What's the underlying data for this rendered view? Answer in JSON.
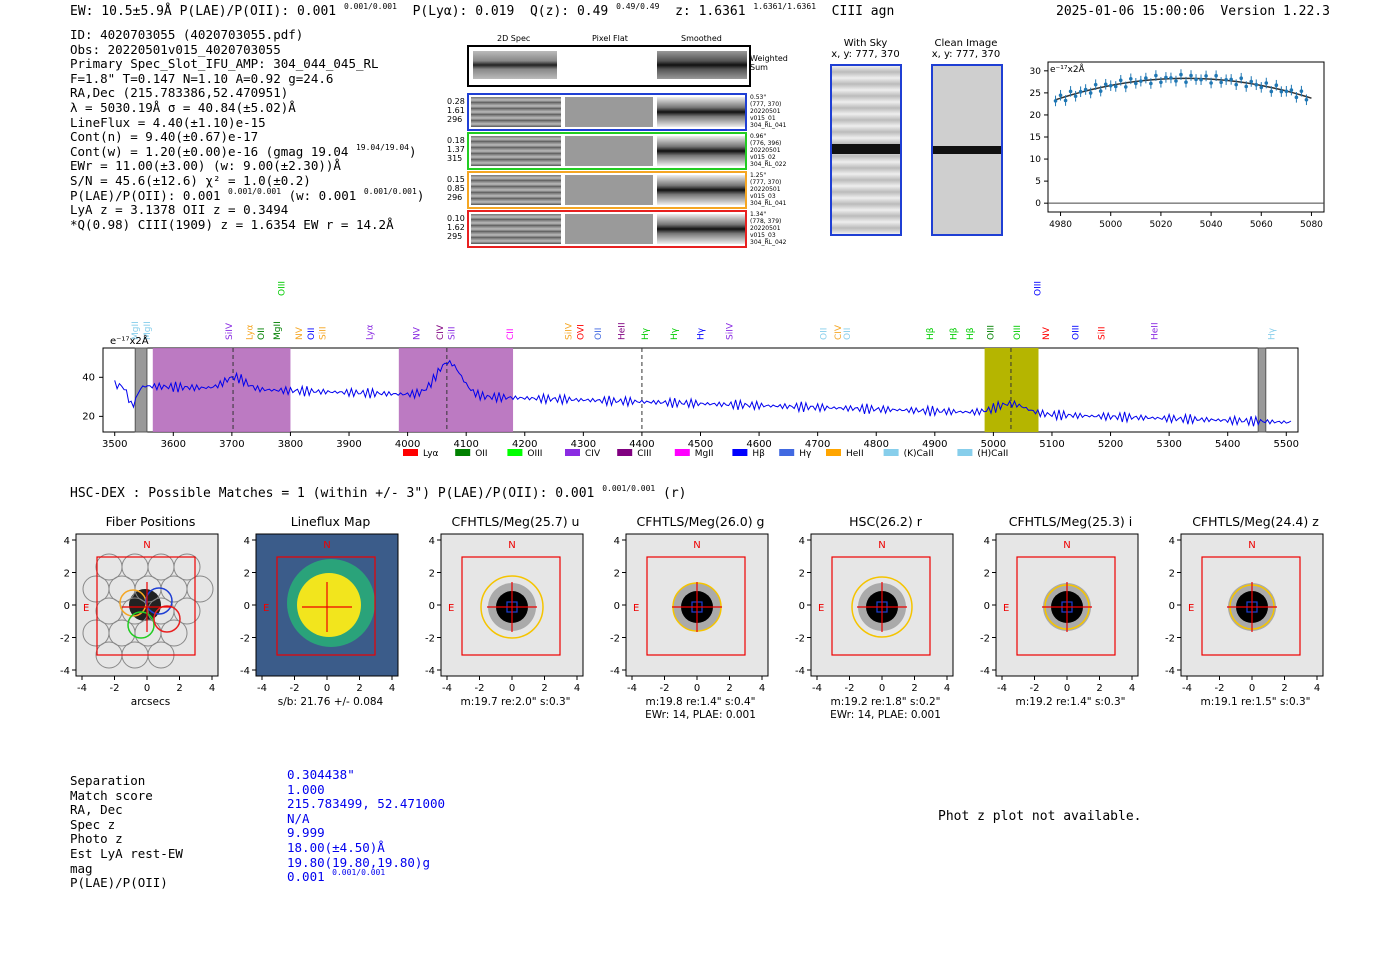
{
  "header": {
    "summary": "EW: 10.5±5.9Å  P(LAE)/P(OII): 0.001",
    "summary_frac": "0.001/0.001",
    "plya": "P(Lyα): 0.019",
    "qz": "Q(z): 0.49",
    "qz_frac": "0.49/0.49",
    "z": "z: 1.6361",
    "z_frac": "1.6361/1.6361",
    "class": "CIII  agn",
    "timestamp": "2025-01-06 15:00:06",
    "version": "Version 1.22.3"
  },
  "info": {
    "id": "ID: 4020703055 (4020703055.pdf)",
    "obs": "Obs: 20220501v015_4020703055",
    "primary": "Primary Spec_Slot_IFU_AMP: 304_044_045_RL",
    "fwhm": "F=1.8\"  T=0.147  N=1.10  A=0.92  g=24.6",
    "radec": "RA,Dec (215.783386,52.470951)",
    "lambda": "λ = 5030.19Å  σ = 40.84(±5.02)Å",
    "lineflux": "LineFlux = 4.40(±1.10)e-15",
    "contn": "Cont(n) = 9.40(±0.67)e-17",
    "contw": "Cont(w) = 1.20(±0.00)e-16 (gmag 19.04",
    "contw_frac": "19.04/19.04",
    "ewr": "EWr = 11.00(±3.00) (w: 9.00(±2.30))Å",
    "sn": "S/N = 45.6(±12.6)  χ² = 1.0(±0.2)",
    "plae": "P(LAE)/P(OII): 0.001",
    "plae_mid": "(w: 0.001",
    "lya_z": "LyA z = 3.1378  OII z = 0.3494",
    "qline": "*Q(0.98) CIII(1909) z = 1.6354  EW r = 14.2Å"
  },
  "spec2d": {
    "col_headers": [
      "2D Spec",
      "Pixel Flat",
      "Smoothed"
    ],
    "weighted_sum": "Weighted Sum",
    "rows": [
      {
        "stats": [
          "0.28",
          "1.61",
          "296"
        ],
        "notes": [
          "0.53\"",
          "(777, 370)",
          "20220501",
          "v015_01",
          "304_RL_041"
        ],
        "color": "#1f3fd4"
      },
      {
        "stats": [
          "0.18",
          "1.37",
          "315"
        ],
        "notes": [
          "0.96\"",
          "(776, 396)",
          "20220501",
          "v015_02",
          "304_RL_022"
        ],
        "color": "#22cc22"
      },
      {
        "stats": [
          "0.15",
          "0.85",
          "296"
        ],
        "notes": [
          "1.25\"",
          "(777, 370)",
          "20220501",
          "v015_03",
          "304_RL_041"
        ],
        "color": "#f5a623"
      },
      {
        "stats": [
          "0.10",
          "1.62",
          "295"
        ],
        "notes": [
          "1.34\"",
          "(778, 379)",
          "20220501",
          "v015_03",
          "304_RL_042"
        ],
        "color": "#e82020"
      }
    ]
  },
  "sky": {
    "with_sky_title": "With Sky",
    "with_sky_sub": "x, y: 777, 370",
    "clean_title": "Clean Image",
    "clean_sub": "x, y: 777, 370"
  },
  "zoom_plot": {
    "unit": "e⁻¹⁷x2Å",
    "x_ticks": [
      "4980",
      "5000",
      "5020",
      "5040",
      "5060",
      "5080"
    ],
    "y_ticks": [
      "0",
      "5",
      "10",
      "15",
      "20",
      "25",
      "30"
    ]
  },
  "full_spectrum": {
    "unit": "e⁻¹⁷x2Å",
    "x_ticks": [
      "3500",
      "3600",
      "3700",
      "3800",
      "3900",
      "4000",
      "4100",
      "4200",
      "4300",
      "4400",
      "4500",
      "4600",
      "4700",
      "4800",
      "4900",
      "5000",
      "5100",
      "5200",
      "5300",
      "5400",
      "5500"
    ],
    "y_ticks": [
      "20",
      "40"
    ],
    "legend": [
      {
        "label": "Lyα",
        "color": "#ff0000"
      },
      {
        "label": "OII",
        "color": "#008000"
      },
      {
        "label": "OIII",
        "color": "#00ff00"
      },
      {
        "label": "CIV",
        "color": "#8a2be2"
      },
      {
        "label": "CIII",
        "color": "#800080"
      },
      {
        "label": "MgII",
        "color": "#ff00ff"
      },
      {
        "label": "Hβ",
        "color": "#0000ff"
      },
      {
        "label": "Hγ",
        "color": "#4169e1"
      },
      {
        "label": "HeII",
        "color": "#ffa500"
      },
      {
        "label": "(K)CaII",
        "color": "#87ceeb"
      },
      {
        "label": "(H)CaII",
        "color": "#87ceeb"
      }
    ],
    "line_labels": [
      {
        "t": "MgII",
        "c": "#87ceeb"
      },
      {
        "t": "MgII",
        "c": "#87ceeb"
      },
      {
        "t": "SiIV",
        "c": "#8a2be2"
      },
      {
        "t": "Lyα",
        "c": "#f5a623"
      },
      {
        "t": "OII",
        "c": "#008000"
      },
      {
        "t": "MgII",
        "c": "#008000"
      },
      {
        "t": "OIII",
        "c": "#00cc00"
      },
      {
        "t": "NV",
        "c": "#f5a623"
      },
      {
        "t": "OII",
        "c": "#0000ff"
      },
      {
        "t": "SiII",
        "c": "#f5a623"
      },
      {
        "t": "Lyα",
        "c": "#8a2be2"
      },
      {
        "t": "NV",
        "c": "#8a2be2"
      },
      {
        "t": "CIV",
        "c": "#800080"
      },
      {
        "t": "SiII",
        "c": "#8a2be2"
      },
      {
        "t": "CII",
        "c": "#ff00ff"
      },
      {
        "t": "SiIV",
        "c": "#f5a623"
      },
      {
        "t": "OVI",
        "c": "#ff0000"
      },
      {
        "t": "OII",
        "c": "#4169e1"
      },
      {
        "t": "HeII",
        "c": "#800080"
      },
      {
        "t": "Hγ",
        "c": "#00cc00"
      },
      {
        "t": "Hγ",
        "c": "#00cc00"
      },
      {
        "t": "Hγ",
        "c": "#0000ff"
      },
      {
        "t": "SiIV",
        "c": "#8a2be2"
      },
      {
        "t": "OII",
        "c": "#87ceeb"
      },
      {
        "t": "CIV",
        "c": "#f5a623"
      },
      {
        "t": "OII",
        "c": "#87ceeb"
      },
      {
        "t": "Hβ",
        "c": "#00cc00"
      },
      {
        "t": "Hβ",
        "c": "#00cc00"
      },
      {
        "t": "Hβ",
        "c": "#00cc00"
      },
      {
        "t": "OIII",
        "c": "#008000"
      },
      {
        "t": "OIII",
        "c": "#00cc00"
      },
      {
        "t": "OIII",
        "c": "#0000ff"
      },
      {
        "t": "NV",
        "c": "#ff0000"
      },
      {
        "t": "OIII",
        "c": "#0000ff"
      },
      {
        "t": "SiII",
        "c": "#ff0000"
      },
      {
        "t": "HeII",
        "c": "#8a2be2"
      },
      {
        "t": "Hγ",
        "c": "#87ceeb"
      }
    ]
  },
  "hscdex": {
    "line": "HSC-DEX : Possible Matches = 1 (within +/- 3\")  P(LAE)/P(OII): 0.001",
    "line_tail": "(r)"
  },
  "cutouts": [
    {
      "title": "Fiber Positions",
      "caption1": "arcsecs",
      "caption2": ""
    },
    {
      "title": "Lineflux Map",
      "caption1": "s/b: 21.76 +/- 0.084",
      "caption2": ""
    },
    {
      "title": "CFHTLS/Meg(25.7) u",
      "caption1": "m:19.7  re:2.0\"  s:0.3\"",
      "caption2": ""
    },
    {
      "title": "CFHTLS/Meg(26.0) g",
      "caption1": "m:19.8  re:1.4\"  s:0.4\"",
      "caption2": "EWr: 14, PLAE: 0.001"
    },
    {
      "title": "HSC(26.2) r",
      "caption1": "m:19.2  re:1.8\"  s:0.2\"",
      "caption2": "EWr: 14, PLAE: 0.001"
    },
    {
      "title": "CFHTLS/Meg(25.3) i",
      "caption1": "m:19.2  re:1.4\"  s:0.3\"",
      "caption2": ""
    },
    {
      "title": "CFHTLS/Meg(24.4) z",
      "caption1": "m:19.1  re:1.5\"  s:0.3\"",
      "caption2": ""
    }
  ],
  "cutout_axis": {
    "ticks": [
      "-4",
      "-2",
      "0",
      "2",
      "4"
    ],
    "n": "N",
    "e": "E"
  },
  "xmatch": {
    "labels": [
      "Separation",
      "Match score",
      "RA, Dec",
      "Spec z",
      "Photo z",
      "Est LyA rest-EW",
      "mag",
      "P(LAE)/P(OII)"
    ],
    "values": [
      "0.304438\"",
      "1.000",
      "215.783499, 52.471000",
      "N/A",
      "9.999",
      "18.00(±4.50)Å",
      "19.80(19.80,19.80)g",
      "0.001"
    ],
    "plae_frac": "0.001/0.001"
  },
  "photz": {
    "message": "Phot z plot not available."
  }
}
